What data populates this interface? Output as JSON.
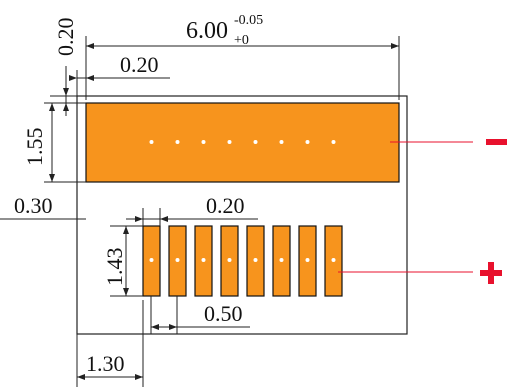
{
  "dimensions": {
    "overall_width_main": "6.00",
    "overall_width_tol_upper": "-0.05",
    "overall_width_tol_lower": "+0",
    "top_gap": "0.20",
    "left_gap": "0.20",
    "top_pad_height": "1.55",
    "pad_row_gap": "0.30",
    "finger_width": "0.20",
    "finger_height": "1.43",
    "finger_pitch": "0.50",
    "bottom_left_offset": "1.30"
  },
  "polarity": {
    "negative": "−",
    "positive": "+"
  },
  "colors": {
    "pad_fill": "#F7941D",
    "outline": "#000000",
    "leader": "#E8112D",
    "dot": "#FFFFFF"
  },
  "layout_counts": {
    "bottom_fingers": 8,
    "top_dots": 8,
    "bottom_dots": 8
  }
}
